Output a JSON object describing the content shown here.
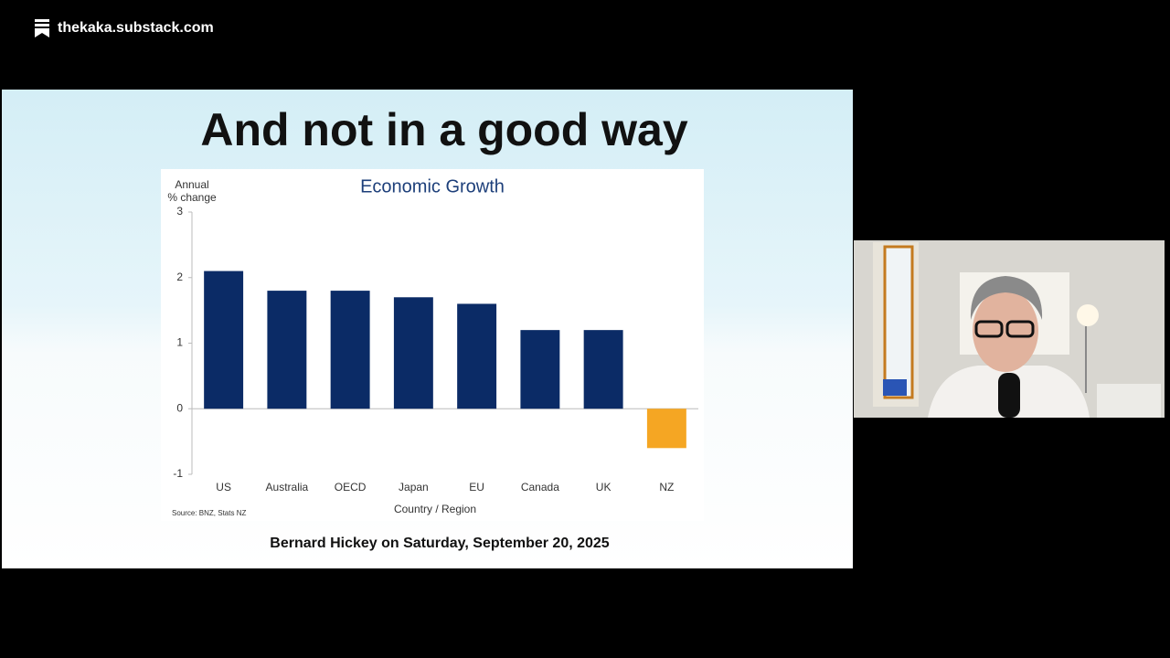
{
  "header": {
    "site": "thekaka.substack.com"
  },
  "slide": {
    "title": "And not in a good way",
    "caption": "Bernard Hickey on Saturday, September 20, 2025"
  },
  "chart_data": {
    "type": "bar",
    "title": "Economic Growth",
    "ylabel": [
      "Annual",
      "% change"
    ],
    "xlabel": "Country / Region",
    "source": "Source: BNZ, Stats NZ",
    "categories": [
      "US",
      "Australia",
      "OECD",
      "Japan",
      "EU",
      "Canada",
      "UK",
      "NZ"
    ],
    "values": [
      2.1,
      1.8,
      1.8,
      1.7,
      1.6,
      1.2,
      1.2,
      -0.6
    ],
    "colors": [
      "#0b2b66",
      "#0b2b66",
      "#0b2b66",
      "#0b2b66",
      "#0b2b66",
      "#0b2b66",
      "#0b2b66",
      "#f5a623"
    ],
    "ylim": [
      -1,
      3
    ],
    "yticks": [
      -1,
      0,
      1,
      2,
      3
    ],
    "grid": false
  }
}
